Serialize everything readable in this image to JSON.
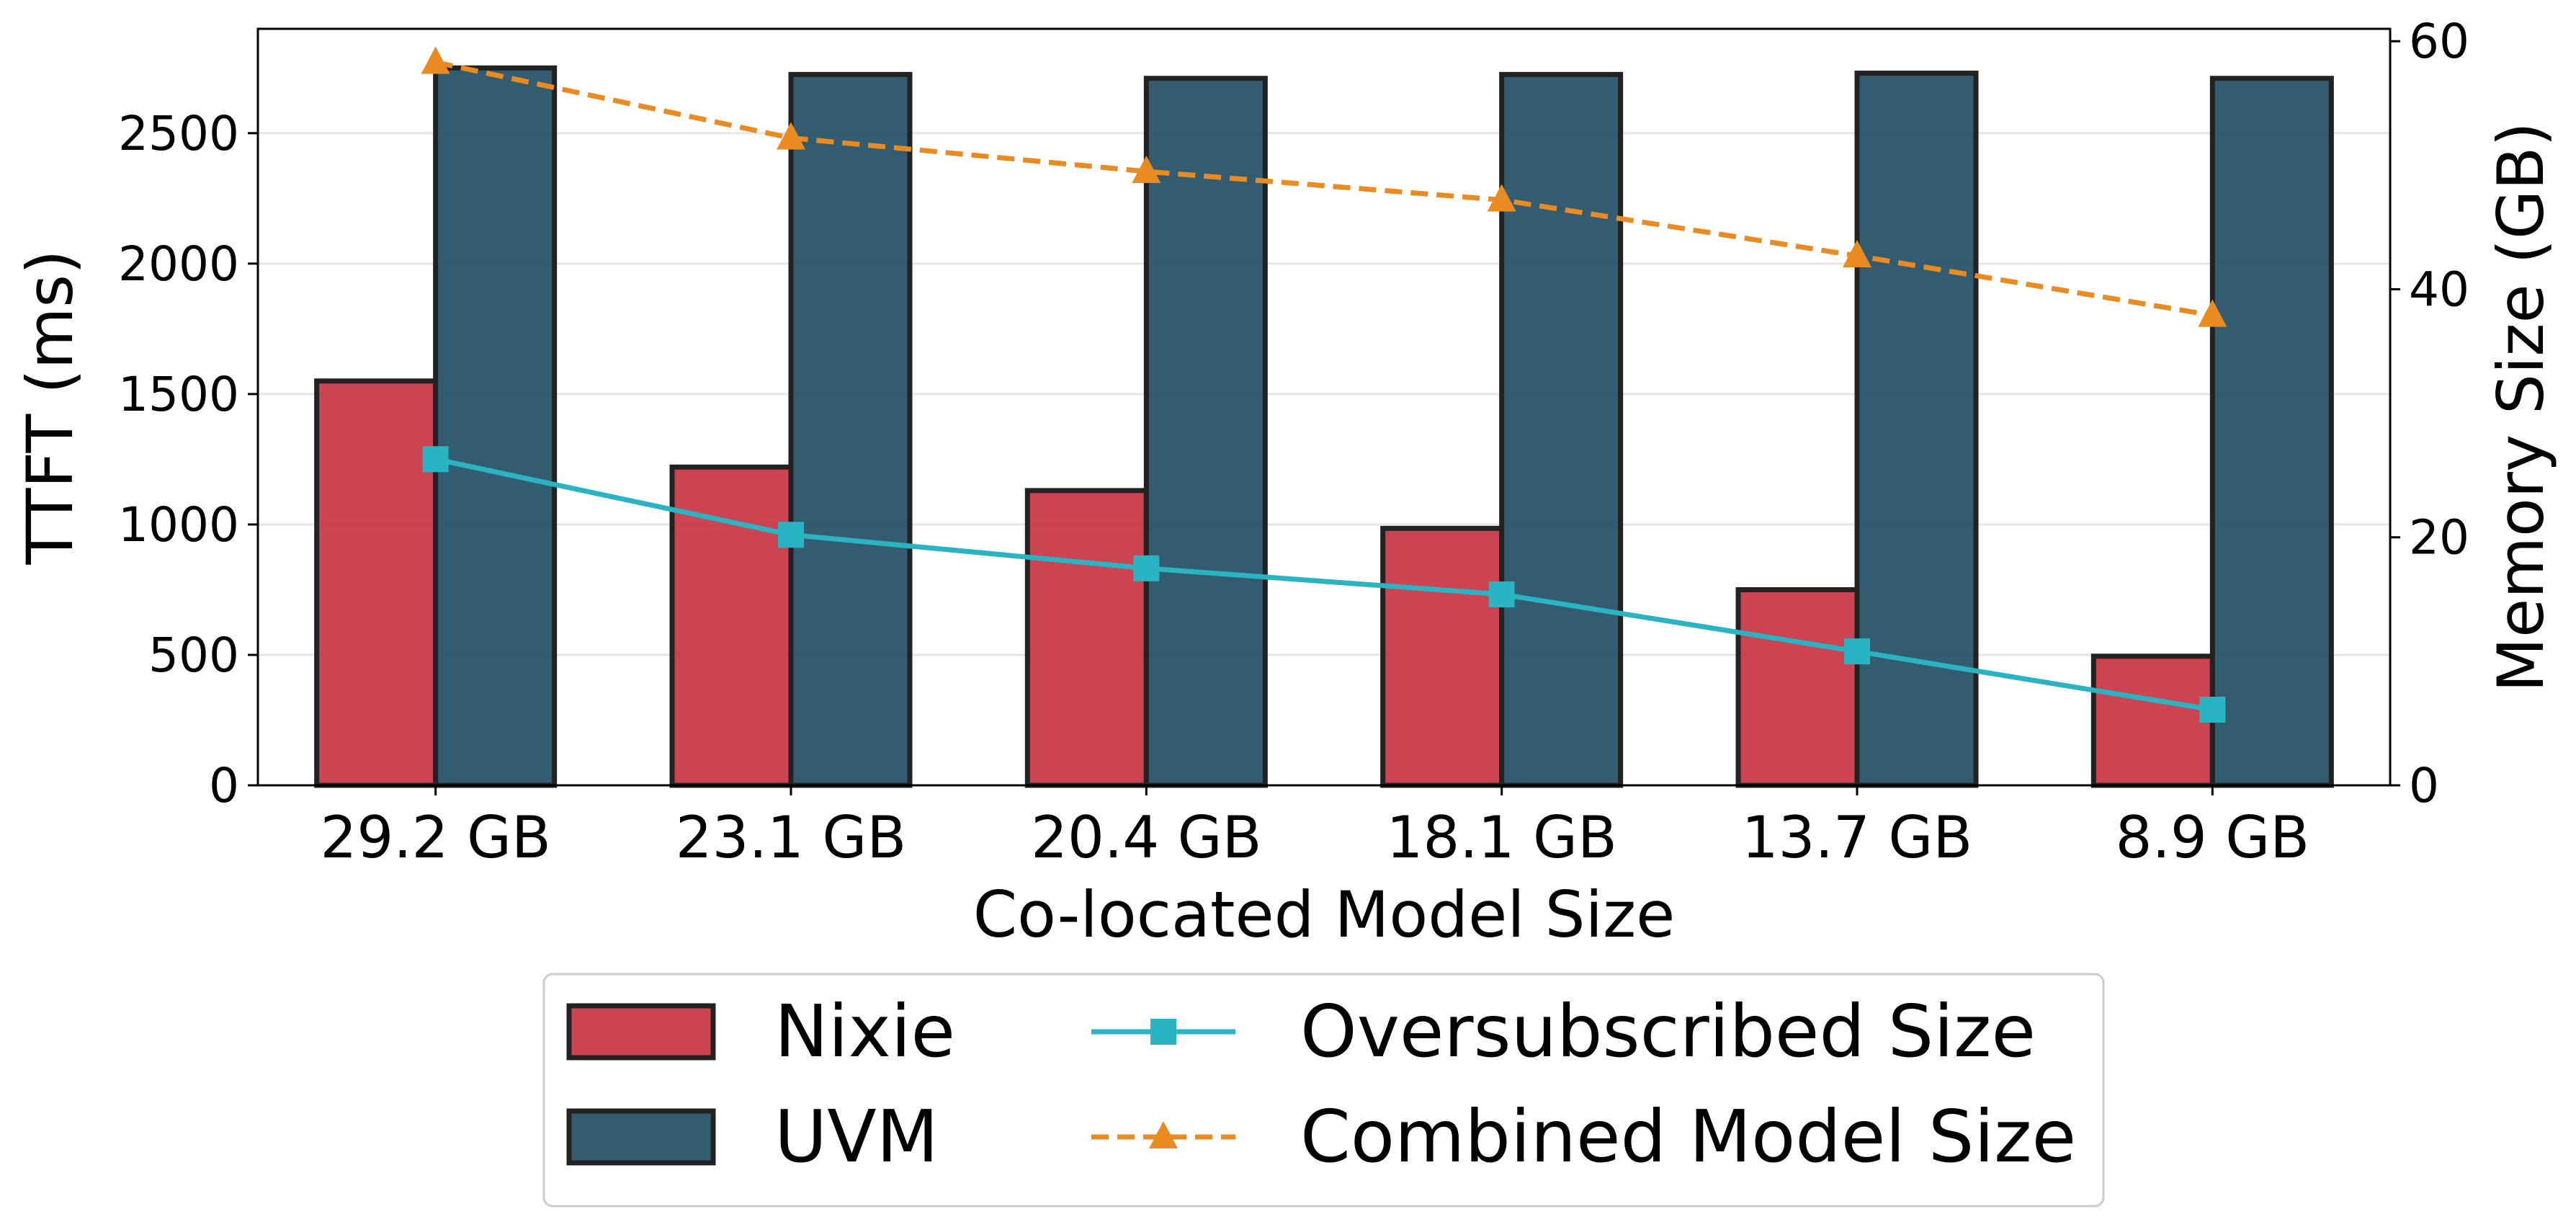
{
  "chart_data": {
    "type": "bar",
    "xlabel": "Co-located Model Size",
    "ylabel": "TTFT (ms)",
    "ylabel_right": "Memory Size (GB)",
    "categories": [
      "29.2 GB",
      "23.1 GB",
      "20.4 GB",
      "18.1 GB",
      "13.7 GB",
      "8.9 GB"
    ],
    "ylim": [
      0,
      2900
    ],
    "ylim_right": [
      0,
      61
    ],
    "yticks": [
      "0",
      "500",
      "1000",
      "1500",
      "2000",
      "2500"
    ],
    "yticks_right": [
      "0",
      "20",
      "40",
      "60"
    ],
    "grid": true,
    "legend_position": "bottom-center",
    "series": [
      {
        "name": "Nixie",
        "kind": "bar",
        "axis": "left",
        "color": "#c7303f",
        "values": [
          1550,
          1220,
          1130,
          985,
          750,
          495
        ]
      },
      {
        "name": "UVM",
        "kind": "bar",
        "axis": "left",
        "color": "#1e4a60",
        "values": [
          2750,
          2725,
          2710,
          2725,
          2730,
          2710
        ]
      },
      {
        "name": "Oversubscribed Size",
        "kind": "line",
        "axis": "right",
        "color": "#2ab3c2",
        "marker": "square",
        "linestyle": "solid",
        "values": [
          26.3,
          20.2,
          17.5,
          15.4,
          10.8,
          6.1
        ]
      },
      {
        "name": "Combined Model Size",
        "kind": "line",
        "axis": "right",
        "color": "#ea8b21",
        "marker": "triangle",
        "linestyle": "dashed",
        "values": [
          58.3,
          52.2,
          49.5,
          47.2,
          42.7,
          37.9
        ]
      }
    ]
  }
}
